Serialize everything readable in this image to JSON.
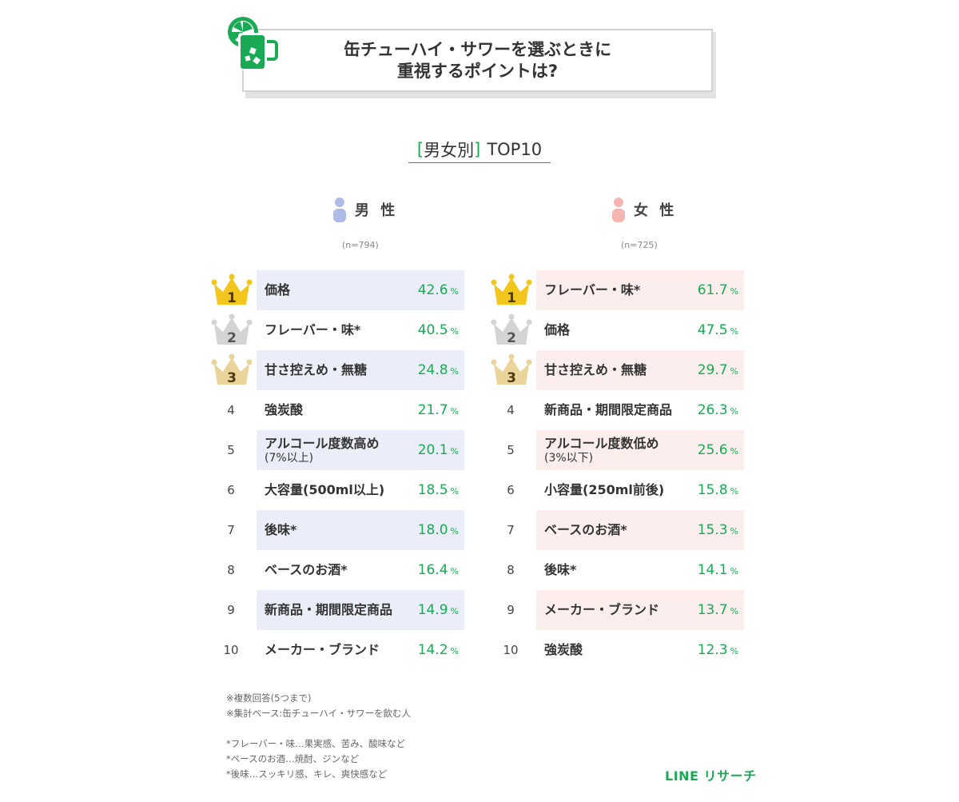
{
  "title": {
    "line1": "缶チューハイ・サワーを選ぶときに",
    "line2": "重視するポイントは?"
  },
  "subtitle": {
    "open": "[",
    "text": "男女別",
    "close": "]",
    "suffix": "TOP10"
  },
  "colors": {
    "accent": "#1aaa55",
    "male_band": "#ebeef8",
    "female_band": "#fdeeee",
    "male_icon": "#aebbe6",
    "female_icon": "#f5b5b0",
    "gold": "#f3c61e",
    "silver": "#d4d4d4",
    "bronze": "#ead49a"
  },
  "icons": [
    "drink-icon",
    "male-person-icon",
    "female-person-icon",
    "crown-gold-icon",
    "crown-silver-icon",
    "crown-bronze-icon"
  ],
  "pct_unit": "%",
  "chart_data": [
    {
      "type": "table",
      "group": "男 性",
      "n_label": "(n=794)",
      "ranks": [
        "1",
        "2",
        "3",
        "4",
        "5",
        "6",
        "7",
        "8",
        "9",
        "10"
      ],
      "categories": [
        {
          "label": "価格",
          "sub": ""
        },
        {
          "label": "フレーバー・味*",
          "sub": ""
        },
        {
          "label": "甘さ控えめ・無糖",
          "sub": ""
        },
        {
          "label": "強炭酸",
          "sub": ""
        },
        {
          "label": "アルコール度数高め",
          "sub": "(7%以上)"
        },
        {
          "label": "大容量(500ml以上)",
          "sub": ""
        },
        {
          "label": "後味*",
          "sub": ""
        },
        {
          "label": "ベースのお酒*",
          "sub": ""
        },
        {
          "label": "新商品・期間限定商品",
          "sub": ""
        },
        {
          "label": "メーカー・ブランド",
          "sub": ""
        }
      ],
      "values": [
        42.6,
        40.5,
        24.8,
        21.7,
        20.1,
        18.5,
        18.0,
        16.4,
        14.9,
        14.2
      ]
    },
    {
      "type": "table",
      "group": "女 性",
      "n_label": "(n=725)",
      "ranks": [
        "1",
        "2",
        "3",
        "4",
        "5",
        "6",
        "7",
        "8",
        "9",
        "10"
      ],
      "categories": [
        {
          "label": "フレーバー・味*",
          "sub": ""
        },
        {
          "label": "価格",
          "sub": ""
        },
        {
          "label": "甘さ控えめ・無糖",
          "sub": ""
        },
        {
          "label": "新商品・期間限定商品",
          "sub": ""
        },
        {
          "label": "アルコール度数低め",
          "sub": "(3%以下)"
        },
        {
          "label": "小容量(250ml前後)",
          "sub": ""
        },
        {
          "label": "ベースのお酒*",
          "sub": ""
        },
        {
          "label": "後味*",
          "sub": ""
        },
        {
          "label": "メーカー・ブランド",
          "sub": ""
        },
        {
          "label": "強炭酸",
          "sub": ""
        }
      ],
      "values": [
        61.7,
        47.5,
        29.7,
        26.3,
        25.6,
        15.8,
        15.3,
        14.1,
        13.7,
        12.3
      ]
    }
  ],
  "notes": {
    "line1": "※複数回答(5つまで)",
    "line2": "※集計ベース:缶チューハイ・サワーを飲む人",
    "def1": "*フレーバー・味…果実感、苦み、酸味など",
    "def2": "*ベースのお酒…焼酎、ジンなど",
    "def3": "*後味…スッキリ感、キレ、爽快感など"
  },
  "brand": "LINE リサーチ"
}
